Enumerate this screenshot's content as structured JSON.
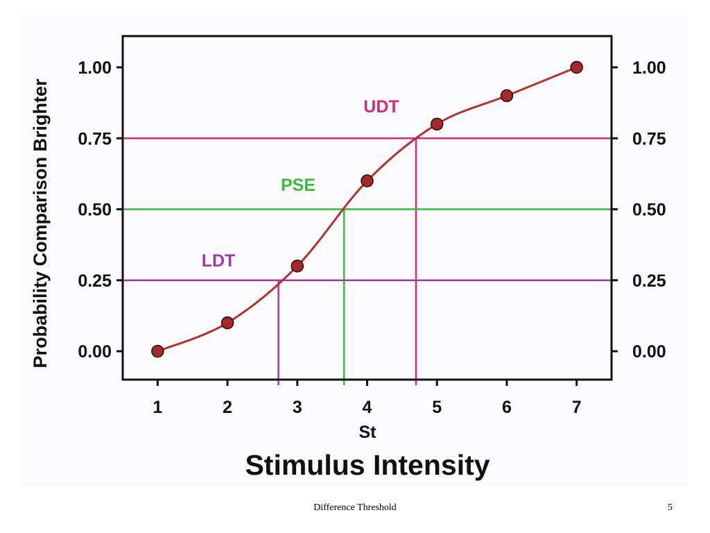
{
  "slide": {
    "footer_title": "Difference Threshold",
    "page_number": "5"
  },
  "colors": {
    "curve": "#b4302e",
    "points": "#a32a2c",
    "udt": "#d42a7a",
    "pse": "#3cb93c",
    "ldt": "#9b3aa6",
    "axes": "#111111"
  },
  "chart_data": {
    "type": "line",
    "title": "",
    "xlabel": "Stimulus Intensity",
    "xlabel_sub": "St",
    "ylabel": "Probability Comparison Brighter",
    "x": [
      1,
      2,
      3,
      4,
      5,
      6,
      7
    ],
    "y": [
      0.0,
      0.1,
      0.3,
      0.6,
      0.8,
      0.9,
      1.0
    ],
    "xlim": [
      0.5,
      7.5
    ],
    "ylim": [
      -0.1,
      1.11
    ],
    "x_ticks": [
      "1",
      "2",
      "3",
      "4",
      "5",
      "6",
      "7"
    ],
    "y_ticks": [
      "0.00",
      "0.25",
      "0.50",
      "0.75",
      "1.00"
    ],
    "y_tick_values": [
      0.0,
      0.25,
      0.5,
      0.75,
      1.0
    ],
    "right_axis_ticks": [
      "0.00",
      "0.25",
      "0.50",
      "0.75",
      "1.00"
    ],
    "grid": false,
    "thresholds": [
      {
        "label": "UDT",
        "y": 0.75,
        "x": 4.7,
        "color_key": "udt"
      },
      {
        "label": "PSE",
        "y": 0.5,
        "x": 3.67,
        "color_key": "pse"
      },
      {
        "label": "LDT",
        "y": 0.25,
        "x": 2.73,
        "color_key": "ldt"
      }
    ]
  }
}
